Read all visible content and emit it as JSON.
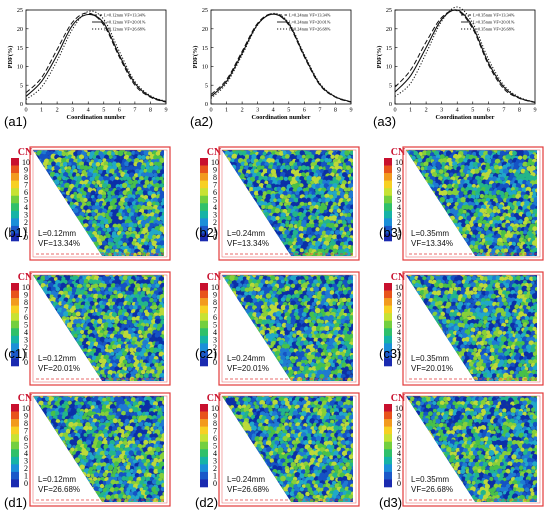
{
  "top_labels": [
    "(a1)",
    "(a2)",
    "(a3)"
  ],
  "grid_labels": [
    [
      "(b1)",
      "(b2)",
      "(b3)"
    ],
    [
      "(c1)",
      "(c2)",
      "(c3)"
    ],
    [
      "(d1)",
      "(d2)",
      "(d3)"
    ]
  ],
  "cn_title": "CN",
  "cn_ticks": [
    "10",
    "9",
    "8",
    "7",
    "6",
    "5",
    "4",
    "3",
    "2",
    "1",
    "0"
  ],
  "cn_colors": [
    "#c8102e",
    "#e8541c",
    "#f29a1e",
    "#f7d023",
    "#c7e234",
    "#73cf3f",
    "#2fc06a",
    "#16b3a6",
    "#1b8fd8",
    "#1b59c9",
    "#1a2ab0"
  ],
  "particle_palette": [
    "#0b2fa8",
    "#1553c4",
    "#1f7ad2",
    "#21a8c8",
    "#23b58a",
    "#47c04a",
    "#86cf3a",
    "#bcd93a"
  ],
  "frame_color": "#e23b3b",
  "box_labels": [
    [
      "L=0.12mm",
      "VF=13.34%"
    ],
    [
      "L=0.24mm",
      "VF=13.34%"
    ],
    [
      "L=0.35mm",
      "VF=13.34%"
    ],
    [
      "L=0.12mm",
      "VF=20.01%"
    ],
    [
      "L=0.24mm",
      "VF=20.01%"
    ],
    [
      "L=0.35mm",
      "VF=20.01%"
    ],
    [
      "L=0.12mm",
      "VF=26.68%"
    ],
    [
      "L=0.24mm",
      "VF=26.68%"
    ],
    [
      "L=0.35mm",
      "VF=26.68%"
    ]
  ],
  "chart_data": [
    {
      "type": "line",
      "xlabel": "Coordination number",
      "ylabel": "PDF(%)",
      "xlim": [
        0,
        9
      ],
      "ylim": [
        0,
        25
      ],
      "xticks": [
        0,
        1,
        2,
        3,
        4,
        5,
        6,
        7,
        8,
        9
      ],
      "yticks": [
        0,
        5,
        10,
        15,
        20,
        25
      ],
      "legend_position": "top-right",
      "x": [
        0,
        1,
        2,
        3,
        4,
        5,
        6,
        7,
        8,
        9
      ],
      "series": [
        {
          "name": "L=0.12mm VF=13.34%",
          "style": "dash",
          "values": [
            3.0,
            7.0,
            14.5,
            21.8,
            24.2,
            21.0,
            12.5,
            5.0,
            1.8,
            0.5
          ]
        },
        {
          "name": "L=0.12mm VF=20.01%",
          "style": "solid",
          "values": [
            2.0,
            6.0,
            13.0,
            21.0,
            23.8,
            21.5,
            13.0,
            5.5,
            2.0,
            0.6
          ]
        },
        {
          "name": "L=0.12mm VF=26.68%",
          "style": "dot",
          "values": [
            1.2,
            4.5,
            11.5,
            20.0,
            24.6,
            22.5,
            14.0,
            6.0,
            2.2,
            0.7
          ]
        }
      ]
    },
    {
      "type": "line",
      "xlabel": "Coordination number",
      "ylabel": "PDF(%)",
      "xlim": [
        0,
        9
      ],
      "ylim": [
        0,
        25
      ],
      "xticks": [
        0,
        1,
        2,
        3,
        4,
        5,
        6,
        7,
        8,
        9
      ],
      "yticks": [
        0,
        5,
        10,
        15,
        20,
        25
      ],
      "legend_position": "top-right",
      "x": [
        0,
        1,
        2,
        3,
        4,
        5,
        6,
        7,
        8,
        9
      ],
      "series": [
        {
          "name": "L=0.24mm VF=13.34%",
          "style": "dash",
          "values": [
            2.5,
            6.5,
            14.0,
            21.5,
            24.0,
            21.0,
            12.5,
            5.0,
            1.8,
            0.5
          ]
        },
        {
          "name": "L=0.24mm VF=20.01%",
          "style": "solid",
          "values": [
            2.0,
            6.0,
            13.5,
            21.2,
            23.9,
            21.3,
            12.8,
            5.2,
            1.9,
            0.6
          ]
        },
        {
          "name": "L=0.24mm VF=26.68%",
          "style": "dot",
          "values": [
            1.5,
            5.5,
            13.0,
            21.0,
            24.1,
            21.6,
            13.2,
            5.5,
            2.0,
            0.6
          ]
        }
      ]
    },
    {
      "type": "line",
      "xlabel": "Coordination number",
      "ylabel": "PDF(%)",
      "xlim": [
        0,
        9
      ],
      "ylim": [
        0,
        25
      ],
      "xticks": [
        0,
        1,
        2,
        3,
        4,
        5,
        6,
        7,
        8,
        9
      ],
      "yticks": [
        0,
        5,
        10,
        15,
        20,
        25
      ],
      "legend_position": "top-right",
      "x": [
        0,
        1,
        2,
        3,
        4,
        5,
        6,
        7,
        8,
        9
      ],
      "series": [
        {
          "name": "L=0.35mm VF=13.34%",
          "style": "dash",
          "values": [
            4.5,
            9.0,
            16.5,
            23.0,
            24.8,
            20.0,
            10.5,
            4.0,
            1.5,
            0.4
          ]
        },
        {
          "name": "L=0.35mm VF=20.01%",
          "style": "solid",
          "values": [
            3.2,
            7.5,
            15.0,
            22.5,
            25.0,
            20.5,
            11.0,
            4.5,
            1.6,
            0.5
          ]
        },
        {
          "name": "L=0.35mm VF=26.68%",
          "style": "dot",
          "values": [
            2.0,
            5.5,
            13.5,
            22.0,
            25.8,
            21.5,
            12.0,
            5.0,
            1.8,
            0.5
          ]
        }
      ]
    }
  ]
}
